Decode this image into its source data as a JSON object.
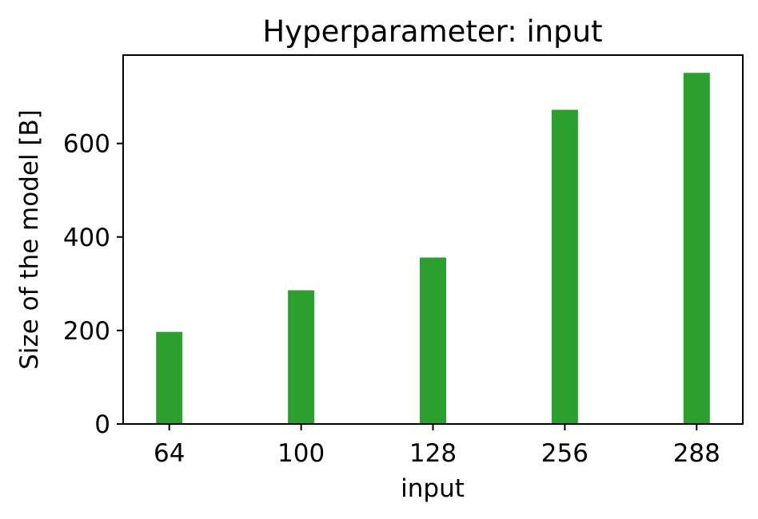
{
  "chart_data": {
    "type": "bar",
    "title": "Hyperparameter: input",
    "xlabel": "input",
    "ylabel": "Size of the model [B]",
    "categories": [
      "64",
      "100",
      "128",
      "256",
      "288"
    ],
    "values": [
      197,
      286,
      356,
      672,
      751
    ],
    "ylim": [
      0,
      789
    ],
    "yticks": [
      0,
      200,
      400,
      600
    ],
    "grid": false,
    "bar_color": "#2ca02c"
  }
}
